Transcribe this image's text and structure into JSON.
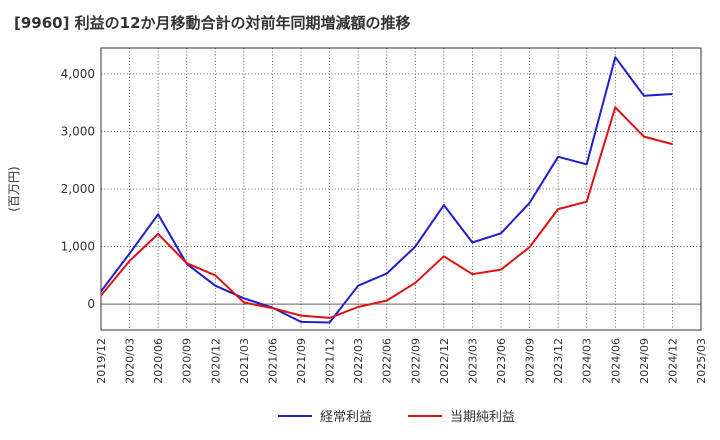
{
  "chart_data": {
    "type": "line",
    "title": "[9960]  利益の12か月移動合計の対前年同期増減額の推移",
    "ylabel": "(百万円)",
    "xlabel": "",
    "ylim": [
      -450,
      4450
    ],
    "yticks": [
      0,
      1000,
      2000,
      3000,
      4000
    ],
    "ytick_labels": [
      "0",
      "1,000",
      "2,000",
      "3,000",
      "4,000"
    ],
    "categories": [
      "2019/12",
      "2020/03",
      "2020/06",
      "2020/09",
      "2020/12",
      "2021/03",
      "2021/06",
      "2021/09",
      "2021/12",
      "2022/03",
      "2022/06",
      "2022/09",
      "2022/12",
      "2023/03",
      "2023/06",
      "2023/09",
      "2023/12",
      "2024/03",
      "2024/06",
      "2024/09",
      "2024/12",
      "2025/03"
    ],
    "grid": true,
    "legend_position": "bottom",
    "series": [
      {
        "name": "経常利益",
        "color": "#1f1fcc",
        "values": [
          220,
          880,
          1560,
          700,
          320,
          100,
          -60,
          -310,
          -320,
          320,
          530,
          1000,
          1720,
          1070,
          1230,
          1760,
          2560,
          2430,
          4290,
          3620,
          3650,
          null
        ]
      },
      {
        "name": "当期純利益",
        "color": "#dd1111",
        "values": [
          150,
          750,
          1220,
          710,
          500,
          30,
          -70,
          -200,
          -240,
          -50,
          60,
          370,
          830,
          520,
          600,
          990,
          1650,
          1780,
          3420,
          2910,
          2780,
          null
        ]
      }
    ]
  }
}
